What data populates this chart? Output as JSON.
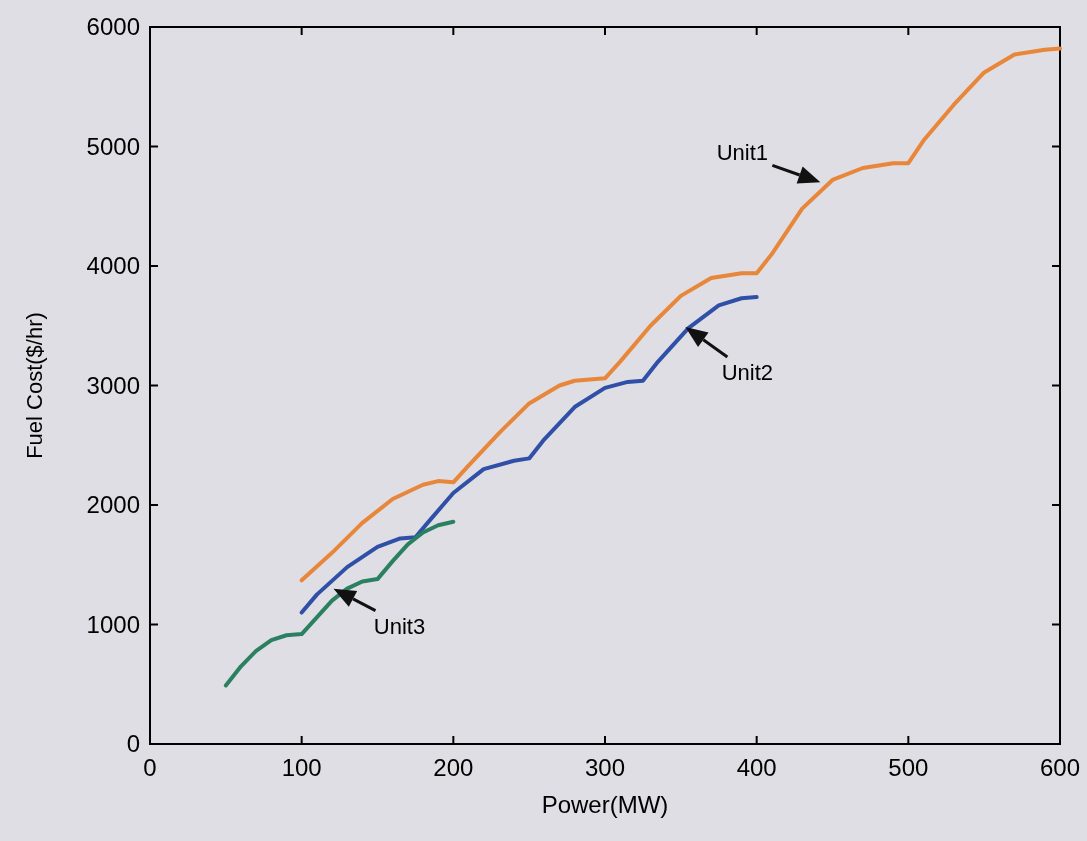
{
  "chart_data": {
    "type": "line",
    "xlabel": "Power(MW)",
    "ylabel": "Fuel Cost($/hr)",
    "xlim": [
      0,
      600
    ],
    "ylim": [
      0,
      6000
    ],
    "xticks": [
      0,
      100,
      200,
      300,
      400,
      500,
      600
    ],
    "yticks": [
      0,
      1000,
      2000,
      3000,
      4000,
      5000,
      6000
    ],
    "grid": false,
    "marker": "none",
    "line_style": "solid",
    "series": [
      {
        "color": "#e8863a",
        "x": [
          100,
          120,
          140,
          160,
          180,
          190,
          200,
          210,
          230,
          250,
          270,
          280,
          290,
          300,
          310,
          330,
          350,
          370,
          390,
          400,
          410,
          430,
          450,
          470,
          490,
          500,
          510,
          530,
          550,
          570,
          590,
          600
        ],
        "values": [
          1370,
          1600,
          1850,
          2050,
          2170,
          2200,
          2190,
          2330,
          2600,
          2850,
          3000,
          3040,
          3050,
          3060,
          3200,
          3500,
          3750,
          3900,
          3940,
          3940,
          4100,
          4480,
          4720,
          4820,
          4860,
          4860,
          5050,
          5350,
          5620,
          5770,
          5810,
          5820
        ]
      },
      {
        "color": "#3050a8",
        "x": [
          100,
          110,
          130,
          150,
          165,
          175,
          185,
          200,
          220,
          240,
          250,
          260,
          280,
          300,
          315,
          325,
          335,
          355,
          375,
          390,
          400
        ],
        "values": [
          1100,
          1250,
          1480,
          1650,
          1720,
          1730,
          1880,
          2100,
          2300,
          2370,
          2390,
          2550,
          2820,
          2980,
          3030,
          3040,
          3200,
          3480,
          3670,
          3730,
          3740
        ]
      },
      {
        "color": "#2a8060",
        "x": [
          50,
          60,
          70,
          80,
          90,
          100,
          110,
          120,
          130,
          140,
          150,
          160,
          170,
          180,
          190,
          200
        ],
        "values": [
          490,
          650,
          780,
          870,
          910,
          920,
          1060,
          1200,
          1300,
          1360,
          1380,
          1530,
          1670,
          1770,
          1830,
          1860
        ]
      }
    ],
    "annotations": [
      {
        "text": "Unit1",
        "x": 442,
        "y": 4700
      },
      {
        "text": "Unit2",
        "x": 353,
        "y": 3490
      },
      {
        "text": "Unit3",
        "x": 121,
        "y": 1300
      }
    ]
  }
}
